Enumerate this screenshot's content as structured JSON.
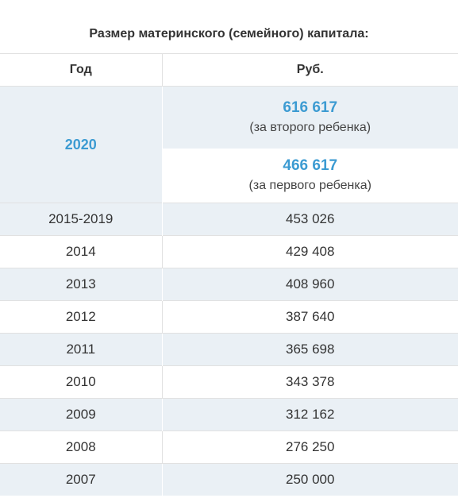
{
  "caption": "Размер материнского (семейного) капитала:",
  "headers": {
    "year": "Год",
    "amount": "Руб."
  },
  "highlight": {
    "year": "2020",
    "second_child_amount": "616 617",
    "second_child_note": "(за второго ребенка)",
    "first_child_amount": "466 617",
    "first_child_note": "(за первого ребенка)"
  },
  "rows": [
    {
      "year": "2015-2019",
      "amount": "453 026"
    },
    {
      "year": "2014",
      "amount": "429 408"
    },
    {
      "year": "2013",
      "amount": "408 960"
    },
    {
      "year": "2012",
      "amount": "387 640"
    },
    {
      "year": "2011",
      "amount": "365 698"
    },
    {
      "year": "2010",
      "amount": "343 378"
    },
    {
      "year": "2009",
      "amount": "312 162"
    },
    {
      "year": "2008",
      "amount": "276 250"
    },
    {
      "year": "2007",
      "amount": "250 000"
    }
  ],
  "colors": {
    "accent": "#3c9bd2",
    "stripe": "#eaf0f5",
    "border": "#e1e1e1",
    "text": "#333333"
  }
}
